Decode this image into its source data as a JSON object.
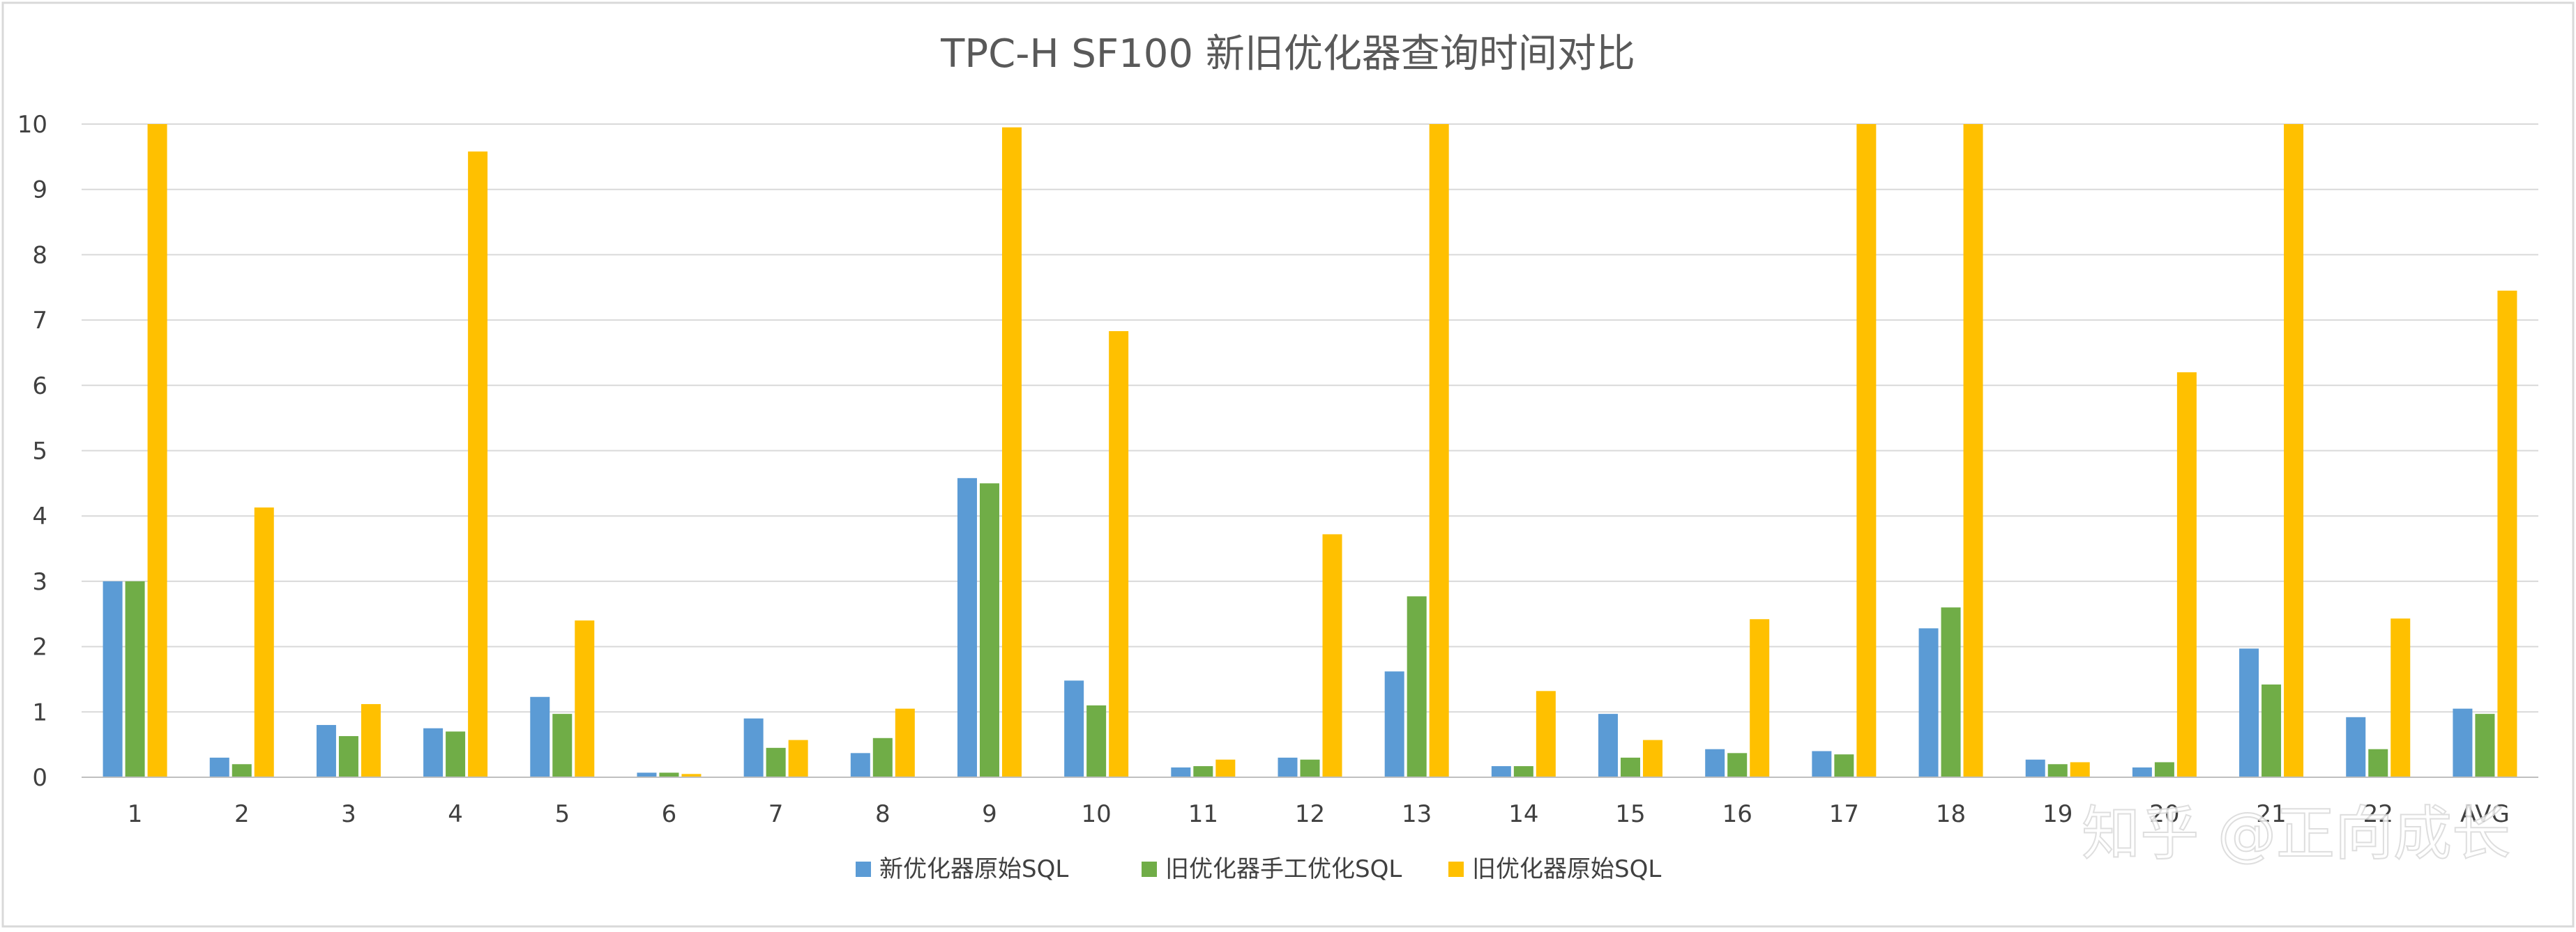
{
  "chart_data": {
    "type": "bar",
    "title": "TPC-H SF100 新旧优化器查询时间对比",
    "xlabel": "",
    "ylabel": "",
    "ylim": [
      0,
      10
    ],
    "yticks": [
      "0",
      "1",
      "2",
      "3",
      "4",
      "5",
      "6",
      "7",
      "8",
      "9",
      "10"
    ],
    "grid": true,
    "legend_position": "bottom",
    "categories": [
      "1",
      "2",
      "3",
      "4",
      "5",
      "6",
      "7",
      "8",
      "9",
      "10",
      "11",
      "12",
      "13",
      "14",
      "15",
      "16",
      "17",
      "18",
      "19",
      "20",
      "21",
      "22",
      "AVG"
    ],
    "series": [
      {
        "name": "新优化器原始SQL",
        "color": "#5B9BD5",
        "values": [
          3.0,
          0.3,
          0.8,
          0.75,
          1.23,
          0.07,
          0.9,
          0.37,
          4.58,
          1.48,
          0.15,
          0.3,
          1.62,
          0.17,
          0.97,
          0.43,
          0.4,
          2.28,
          0.27,
          0.15,
          1.97,
          0.92,
          1.05
        ]
      },
      {
        "name": "旧优化器手工优化SQL",
        "color": "#70AD47",
        "values": [
          3.0,
          0.2,
          0.63,
          0.7,
          0.97,
          0.07,
          0.45,
          0.6,
          4.5,
          1.1,
          0.17,
          0.27,
          2.77,
          0.17,
          0.3,
          0.37,
          0.35,
          2.6,
          0.2,
          0.23,
          1.42,
          0.43,
          0.97
        ]
      },
      {
        "name": "旧优化器原始SQL",
        "color": "#FFC000",
        "values": [
          10,
          4.13,
          1.12,
          9.58,
          2.4,
          0.05,
          0.57,
          1.05,
          9.95,
          6.83,
          0.27,
          3.72,
          10,
          1.32,
          0.57,
          2.42,
          10,
          10,
          0.23,
          6.2,
          10,
          2.43,
          7.45
        ]
      }
    ]
  },
  "watermark": "知乎 @正向成长",
  "colors": {
    "grid": "#d9d9d9",
    "axis": "#bfbfbf",
    "border": "#d9d9d9"
  }
}
